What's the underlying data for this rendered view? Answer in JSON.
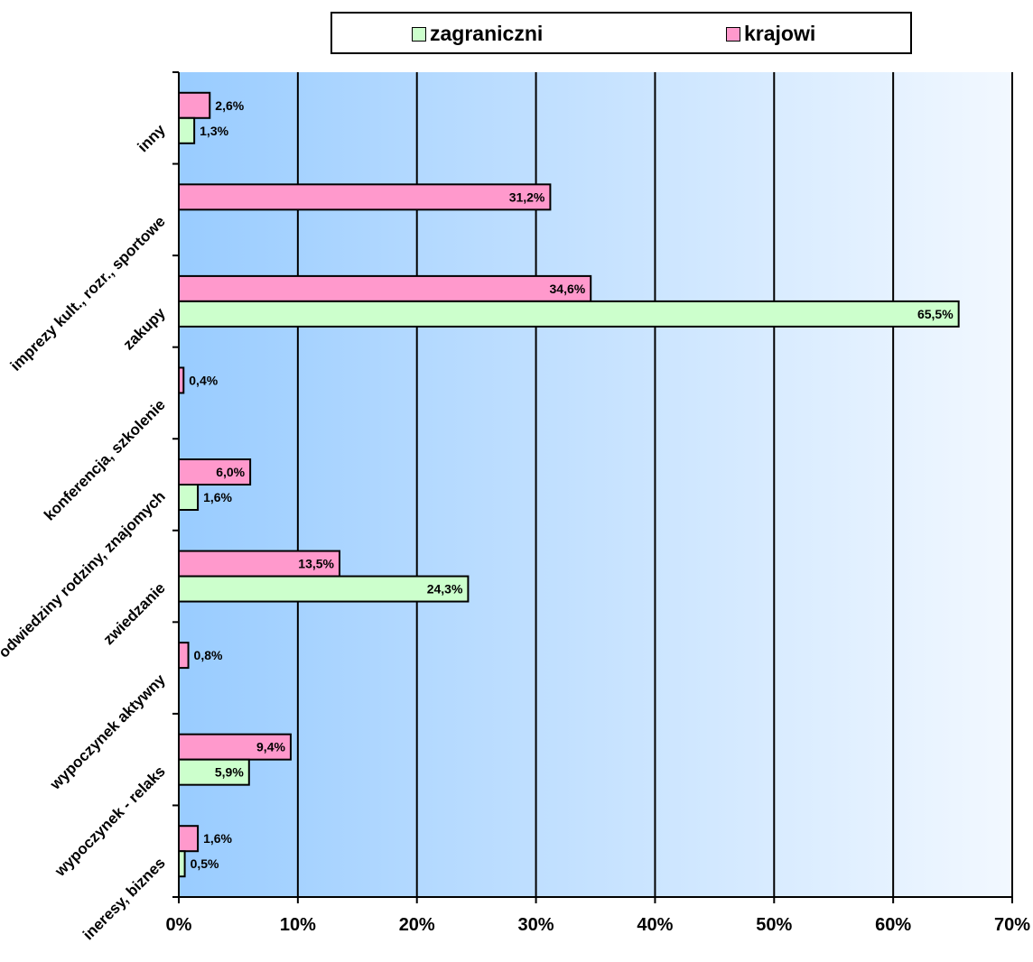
{
  "chart_data": {
    "type": "bar",
    "orientation": "horizontal",
    "categories": [
      "inny",
      "imprezy kult., rozr., sportowe",
      "zakupy",
      "konferencja, szkolenie",
      "odwiedziny rodziny, znajomych",
      "zwiedzanie",
      "wypoczynek aktywny",
      "wypoczynek - relaks",
      "ineresy, biznes"
    ],
    "series": [
      {
        "name": "krajowi",
        "color": "#ff99cc",
        "values": [
          2.6,
          31.2,
          34.6,
          0.4,
          6.0,
          13.5,
          0.8,
          9.4,
          1.6
        ],
        "labels": [
          "2,6%",
          "31,2%",
          "34,6%",
          "0,4%",
          "6,0%",
          "13,5%",
          "0,8%",
          "9,4%",
          "1,6%"
        ]
      },
      {
        "name": "zagraniczni",
        "color": "#ccffcc",
        "values": [
          1.3,
          null,
          65.5,
          null,
          1.6,
          24.3,
          null,
          5.9,
          0.5
        ],
        "labels": [
          "1,3%",
          "",
          "65,5%",
          "",
          "1,6%",
          "24,3%",
          "",
          "5,9%",
          "0,5%"
        ]
      }
    ],
    "xlim": [
      0,
      70
    ],
    "xticks": [
      0,
      10,
      20,
      30,
      40,
      50,
      60,
      70
    ],
    "xtick_labels": [
      "0%",
      "10%",
      "20%",
      "30%",
      "40%",
      "50%",
      "60%",
      "70%"
    ],
    "grid": true,
    "legend_position": "top"
  },
  "legend": {
    "zagraniczni": "zagraniczni",
    "krajowi": "krajowi"
  }
}
